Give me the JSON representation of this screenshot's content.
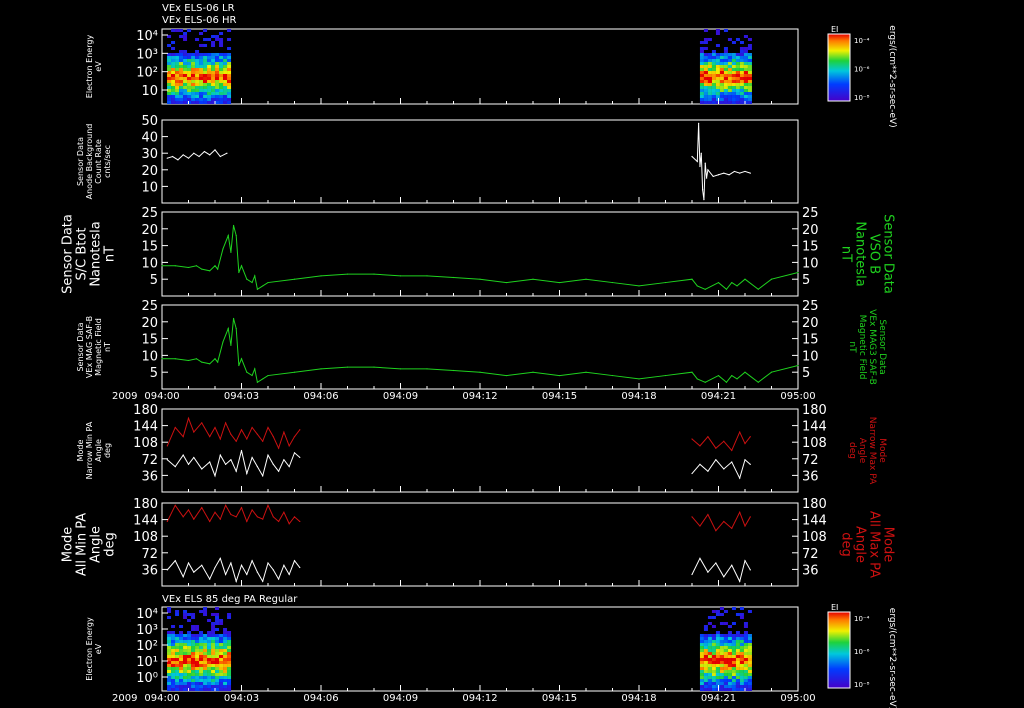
{
  "header": {
    "line1": "VEx ELS-06 LR",
    "line2": "VEx ELS-06 HR"
  },
  "bottom_title": "VEx ELS 85 deg PA Regular",
  "year": "2009",
  "colors": {
    "white": "#ffffff",
    "green": "#1fd21f",
    "red": "#cc1111",
    "axis": "#ffffff"
  },
  "colorbar": {
    "title": "EI",
    "ticks": [
      "10⁻⁴",
      "10⁻⁶",
      "10⁻⁸"
    ],
    "unit_label": "ergs/(cm**2-sr-sec-eV)"
  },
  "time_ticks": [
    "094:00",
    "094:03",
    "094:06",
    "094:09",
    "094:12",
    "094:15",
    "094:18",
    "094:21",
    "095:00"
  ],
  "chart_data": [
    {
      "id": "spec-top",
      "type": "heatmap",
      "ylabel": [
        "Electron Energy",
        "eV"
      ],
      "yticks": [
        "10⁴",
        "10³",
        "10²",
        "10"
      ],
      "coverage": [
        [
          0.19,
          2.5
        ],
        [
          20.3,
          22.2
        ]
      ]
    },
    {
      "id": "background",
      "type": "line",
      "ylabel": [
        "Sensor Data",
        "Anode Background",
        "Count Rate",
        "cnts/sec"
      ],
      "yticks": [
        "10",
        "20",
        "30",
        "40",
        "50"
      ],
      "ylim": [
        0,
        50
      ],
      "series": [
        {
          "color": "white",
          "x": [
            0.2,
            0.4,
            0.6,
            0.8,
            1.0,
            1.2,
            1.4,
            1.6,
            1.8,
            2.0,
            2.2,
            2.45,
            20.0,
            20.2,
            20.25,
            20.3,
            20.35,
            20.4,
            20.45,
            20.5,
            20.55,
            20.6,
            20.8,
            21.0,
            21.2,
            21.4,
            21.6,
            21.8,
            22.0,
            22.2
          ],
          "y": [
            27,
            28,
            26,
            29,
            27,
            30,
            28,
            31,
            29,
            32,
            28,
            30,
            28,
            25,
            48,
            22,
            30,
            8,
            2,
            24,
            15,
            20,
            16,
            17,
            18,
            17,
            19,
            18,
            19,
            18
          ]
        }
      ]
    },
    {
      "id": "vso-b",
      "type": "line",
      "ylabel": [
        "Sensor Data",
        "S/C Btot",
        "Nanotesla",
        "nT"
      ],
      "ylabel_right": [
        "Sensor Data",
        "VSO B",
        "Nanotesla",
        "nT"
      ],
      "yticks": [
        "5",
        "10",
        "15",
        "20",
        "25"
      ],
      "ylim": [
        0,
        25
      ],
      "series": [
        {
          "color": "green",
          "x": [
            0,
            0.5,
            1.0,
            1.3,
            1.5,
            1.8,
            2.0,
            2.1,
            2.3,
            2.5,
            2.6,
            2.7,
            2.8,
            2.9,
            3.0,
            3.2,
            3.4,
            3.5,
            3.6,
            3.8,
            4.0,
            5,
            6,
            7,
            8,
            9,
            10,
            11,
            12,
            13,
            14,
            15,
            16,
            17,
            18,
            19,
            20,
            20.2,
            20.5,
            21.0,
            21.3,
            21.5,
            21.7,
            22.0,
            22.5,
            23,
            24
          ],
          "y": [
            9,
            9,
            8.5,
            9,
            8,
            7.5,
            9,
            8,
            14,
            18,
            13,
            21,
            18,
            7,
            9,
            5,
            4,
            6,
            2,
            3,
            4,
            5,
            6,
            6.5,
            6.5,
            6,
            6,
            5.5,
            5,
            4,
            5,
            4,
            5,
            4,
            3,
            4,
            5,
            3,
            2,
            4,
            2,
            4,
            3,
            5,
            2,
            5,
            7
          ]
        }
      ]
    },
    {
      "id": "mag-saf",
      "type": "line",
      "ylabel": [
        "Sensor Data",
        "VEx MAG SAF-B",
        "Magnetic Field",
        "nT"
      ],
      "ylabel_right": [
        "Sensor Data",
        "VEx MAG3 SAF-B",
        "Magnetic Field",
        "nT"
      ],
      "yticks": [
        "5",
        "10",
        "15",
        "20",
        "25"
      ],
      "ylim": [
        0,
        25
      ],
      "series": [
        {
          "color": "green",
          "x": [
            0,
            0.5,
            1.0,
            1.3,
            1.5,
            1.8,
            2.0,
            2.1,
            2.3,
            2.5,
            2.6,
            2.7,
            2.8,
            2.9,
            3.0,
            3.2,
            3.4,
            3.5,
            3.6,
            3.8,
            4.0,
            5,
            6,
            7,
            8,
            9,
            10,
            11,
            12,
            13,
            14,
            15,
            16,
            17,
            18,
            19,
            20,
            20.2,
            20.5,
            21.0,
            21.3,
            21.5,
            21.7,
            22.0,
            22.5,
            23,
            24
          ],
          "y": [
            9,
            9,
            8.5,
            9,
            8,
            7.5,
            9,
            8,
            14,
            18,
            13,
            21,
            18,
            7,
            9,
            5,
            4,
            6,
            2,
            3,
            4,
            5,
            6,
            6.5,
            6.5,
            6,
            6,
            5.5,
            5,
            4,
            5,
            4,
            5,
            4,
            3,
            4,
            5,
            3,
            2,
            4,
            2,
            4,
            3,
            5,
            2,
            5,
            7
          ]
        }
      ]
    },
    {
      "id": "narrow-pa",
      "type": "line",
      "ylabel": [
        "Mode",
        "Narrow Min PA",
        "Angle",
        "deg"
      ],
      "ylabel_right": [
        "Mode",
        "Narrow Max PA",
        "Angle",
        "deg"
      ],
      "yticks": [
        "36",
        "72",
        "108",
        "144",
        "180"
      ],
      "ylim": [
        0,
        180
      ],
      "series": [
        {
          "color": "red",
          "x": [
            0.2,
            0.5,
            0.8,
            1.0,
            1.2,
            1.5,
            1.8,
            2.0,
            2.2,
            2.4,
            2.6,
            2.8,
            3.0,
            3.2,
            3.4,
            3.6,
            3.8,
            4.0,
            4.2,
            4.4,
            4.6,
            4.8,
            5.0,
            5.2,
            20.0,
            20.3,
            20.6,
            20.9,
            21.2,
            21.5,
            21.8,
            22.0,
            22.2
          ],
          "y": [
            100,
            140,
            120,
            160,
            130,
            150,
            120,
            140,
            115,
            150,
            125,
            110,
            135,
            115,
            140,
            125,
            110,
            140,
            120,
            95,
            130,
            100,
            120,
            135,
            115,
            100,
            120,
            95,
            110,
            90,
            130,
            105,
            120
          ]
        },
        {
          "color": "white",
          "x": [
            0.2,
            0.5,
            0.8,
            1.0,
            1.2,
            1.5,
            1.8,
            2.0,
            2.2,
            2.4,
            2.6,
            2.8,
            3.0,
            3.2,
            3.4,
            3.6,
            3.8,
            4.0,
            4.2,
            4.4,
            4.6,
            4.8,
            5.0,
            5.2,
            20.0,
            20.3,
            20.6,
            20.9,
            21.2,
            21.5,
            21.8,
            22.0,
            22.2
          ],
          "y": [
            70,
            55,
            80,
            60,
            75,
            50,
            65,
            35,
            80,
            60,
            70,
            45,
            90,
            40,
            75,
            55,
            35,
            80,
            60,
            45,
            70,
            55,
            85,
            75,
            40,
            60,
            45,
            70,
            50,
            65,
            30,
            70,
            60
          ]
        }
      ]
    },
    {
      "id": "all-pa",
      "type": "line",
      "ylabel": [
        "Mode",
        "All Min PA",
        "Angle",
        "deg"
      ],
      "ylabel_right": [
        "Mode",
        "All Max PA",
        "Angle",
        "deg"
      ],
      "yticks": [
        "36",
        "72",
        "108",
        "144",
        "180"
      ],
      "ylim": [
        0,
        180
      ],
      "series": [
        {
          "color": "red",
          "x": [
            0.2,
            0.5,
            0.8,
            1.0,
            1.2,
            1.5,
            1.8,
            2.0,
            2.2,
            2.4,
            2.6,
            2.8,
            3.0,
            3.2,
            3.4,
            3.6,
            3.8,
            4.0,
            4.2,
            4.4,
            4.6,
            4.8,
            5.0,
            5.2,
            20.0,
            20.3,
            20.6,
            20.9,
            21.2,
            21.5,
            21.8,
            22.0,
            22.2
          ],
          "y": [
            140,
            175,
            150,
            165,
            145,
            170,
            140,
            160,
            145,
            175,
            155,
            150,
            170,
            140,
            165,
            150,
            145,
            175,
            150,
            140,
            160,
            135,
            150,
            140,
            150,
            130,
            155,
            120,
            140,
            125,
            160,
            130,
            150
          ]
        },
        {
          "color": "white",
          "x": [
            0.2,
            0.5,
            0.8,
            1.0,
            1.2,
            1.5,
            1.8,
            2.0,
            2.2,
            2.4,
            2.6,
            2.8,
            3.0,
            3.2,
            3.4,
            3.6,
            3.8,
            4.0,
            4.2,
            4.4,
            4.6,
            4.8,
            5.0,
            5.2,
            20.0,
            20.3,
            20.6,
            20.9,
            21.2,
            21.5,
            21.8,
            22.0,
            22.2
          ],
          "y": [
            35,
            55,
            20,
            50,
            30,
            45,
            15,
            40,
            60,
            25,
            50,
            10,
            45,
            25,
            55,
            30,
            10,
            50,
            35,
            15,
            45,
            25,
            55,
            40,
            25,
            60,
            30,
            50,
            20,
            45,
            10,
            55,
            35
          ]
        }
      ]
    },
    {
      "id": "spec-bottom",
      "type": "heatmap",
      "ylabel": [
        "Electron Energy",
        "eV"
      ],
      "yticks": [
        "10⁴",
        "10³",
        "10²",
        "10¹",
        "10⁰"
      ],
      "coverage": [
        [
          0.19,
          2.5
        ],
        [
          20.3,
          22.2
        ]
      ]
    }
  ]
}
